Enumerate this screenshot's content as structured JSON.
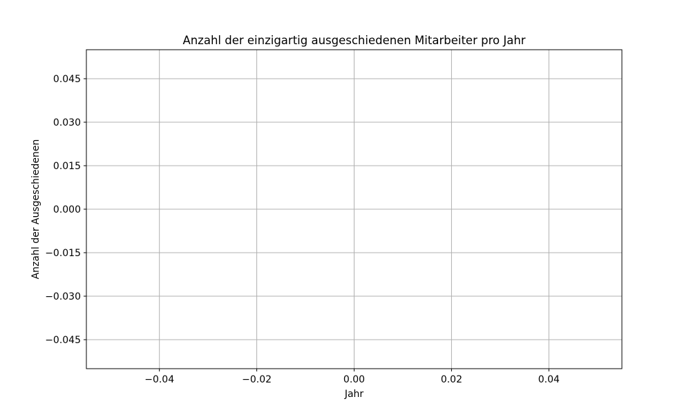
{
  "chart_data": {
    "type": "line",
    "title": "Anzahl der einzigartig ausgeschiedenen Mitarbeiter pro Jahr",
    "xlabel": "Jahr",
    "ylabel": "Anzahl der Ausgeschiedenen",
    "xlim": [
      -0.055,
      0.055
    ],
    "ylim": [
      -0.055,
      0.055
    ],
    "xticks": [
      -0.04,
      -0.02,
      0.0,
      0.02,
      0.04
    ],
    "xtick_labels": [
      "−0.04",
      "−0.02",
      "0.00",
      "0.02",
      "0.04"
    ],
    "yticks": [
      0.045,
      0.03,
      0.015,
      0.0,
      -0.015,
      -0.03,
      -0.045
    ],
    "ytick_labels": [
      "0.045",
      "0.030",
      "0.015",
      "0.000",
      "−0.015",
      "−0.030",
      "−0.045"
    ],
    "series": [
      {
        "x": [],
        "y": []
      }
    ],
    "grid": true,
    "colors": {
      "grid": "#b0b0b0",
      "axes": "#000000",
      "background": "#ffffff"
    }
  }
}
